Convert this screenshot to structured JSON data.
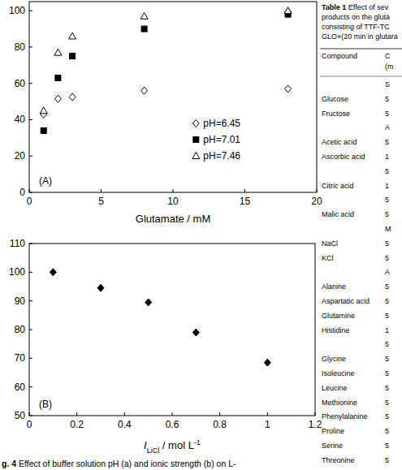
{
  "chart_data": [
    {
      "type": "scatter",
      "xlabel": "Glutamate / mM",
      "annotation": "(A)",
      "xlim": [
        0,
        20
      ],
      "xticks": [
        0,
        5,
        10,
        15,
        20
      ],
      "ylim": [
        0,
        105
      ],
      "yticks": [
        0,
        20,
        40,
        60,
        80,
        100
      ],
      "legend": "lower right",
      "series": [
        {
          "name": "pH=6.45",
          "color": "#000000",
          "marker": "open-diamond",
          "x": [
            1,
            2,
            3,
            8,
            18
          ],
          "values": [
            43,
            51.5,
            52.5,
            56,
            57
          ]
        },
        {
          "name": "pH=7.01",
          "color": "#000000",
          "marker": "square",
          "x": [
            1,
            2,
            3,
            8,
            18
          ],
          "values": [
            34,
            63,
            75,
            90,
            98
          ]
        },
        {
          "name": "pH=7.46",
          "color": "#000000",
          "marker": "open-triangle",
          "x": [
            1,
            2,
            3,
            8,
            18
          ],
          "values": [
            45,
            77,
            86,
            97,
            100
          ]
        }
      ]
    },
    {
      "type": "scatter",
      "xlabel": [
        "I",
        "LiCl",
        " / mol L",
        "-1"
      ],
      "annotation": "(B)",
      "xlim": [
        0,
        1.2
      ],
      "xticks": [
        0,
        0.2,
        0.4,
        0.6,
        0.8,
        1,
        1.2
      ],
      "ylim": [
        50,
        110
      ],
      "yticks": [
        50,
        60,
        70,
        80,
        90,
        100,
        110
      ],
      "series": [
        {
          "color": "#000000",
          "marker": "diamond",
          "x": [
            0.1,
            0.3,
            0.5,
            0.7,
            1
          ],
          "values": [
            100,
            94.5,
            89.5,
            79,
            68.5
          ]
        }
      ]
    }
  ],
  "caption": {
    "label": "g. 4",
    "text": " Effect of buffer solution pH (a) and ionic strength (b) on L-"
  },
  "table": {
    "label": "Table 1",
    "title": [
      " Effect of sev",
      "products on the gluta",
      "consisting of TTF-TC",
      "GLO×(20 min in glutara"
    ],
    "header": [
      [
        "Compound",
        "C"
      ],
      [
        null,
        "(m"
      ]
    ],
    "rows": [
      {
        "section": "S"
      },
      [
        "Glucose",
        5
      ],
      [
        "Fructose",
        5
      ],
      {
        "section": "A"
      },
      [
        "Acetic acid",
        5
      ],
      [
        "Ascorbic acid",
        1
      ],
      [
        null,
        5
      ],
      [
        "Citric acid",
        1
      ],
      [
        null,
        5
      ],
      [
        "Malic acid",
        5
      ],
      {
        "section": "M"
      },
      [
        "NaCl",
        5
      ],
      [
        "KCl",
        5
      ],
      {
        "section": "A"
      },
      [
        "Alanine",
        5
      ],
      [
        "Aspartatic acid",
        5
      ],
      [
        "Glutamine",
        5
      ],
      [
        "Histidine",
        1
      ],
      [
        null,
        5
      ],
      [
        "Glycine",
        5
      ],
      [
        "Isoleucine",
        5
      ],
      [
        "Leucine",
        5
      ],
      [
        "Methionine",
        5
      ],
      [
        "Phenylalanine",
        5
      ],
      [
        "Proline",
        5
      ],
      [
        "Serine",
        5
      ],
      [
        "Threonine",
        5
      ]
    ]
  }
}
